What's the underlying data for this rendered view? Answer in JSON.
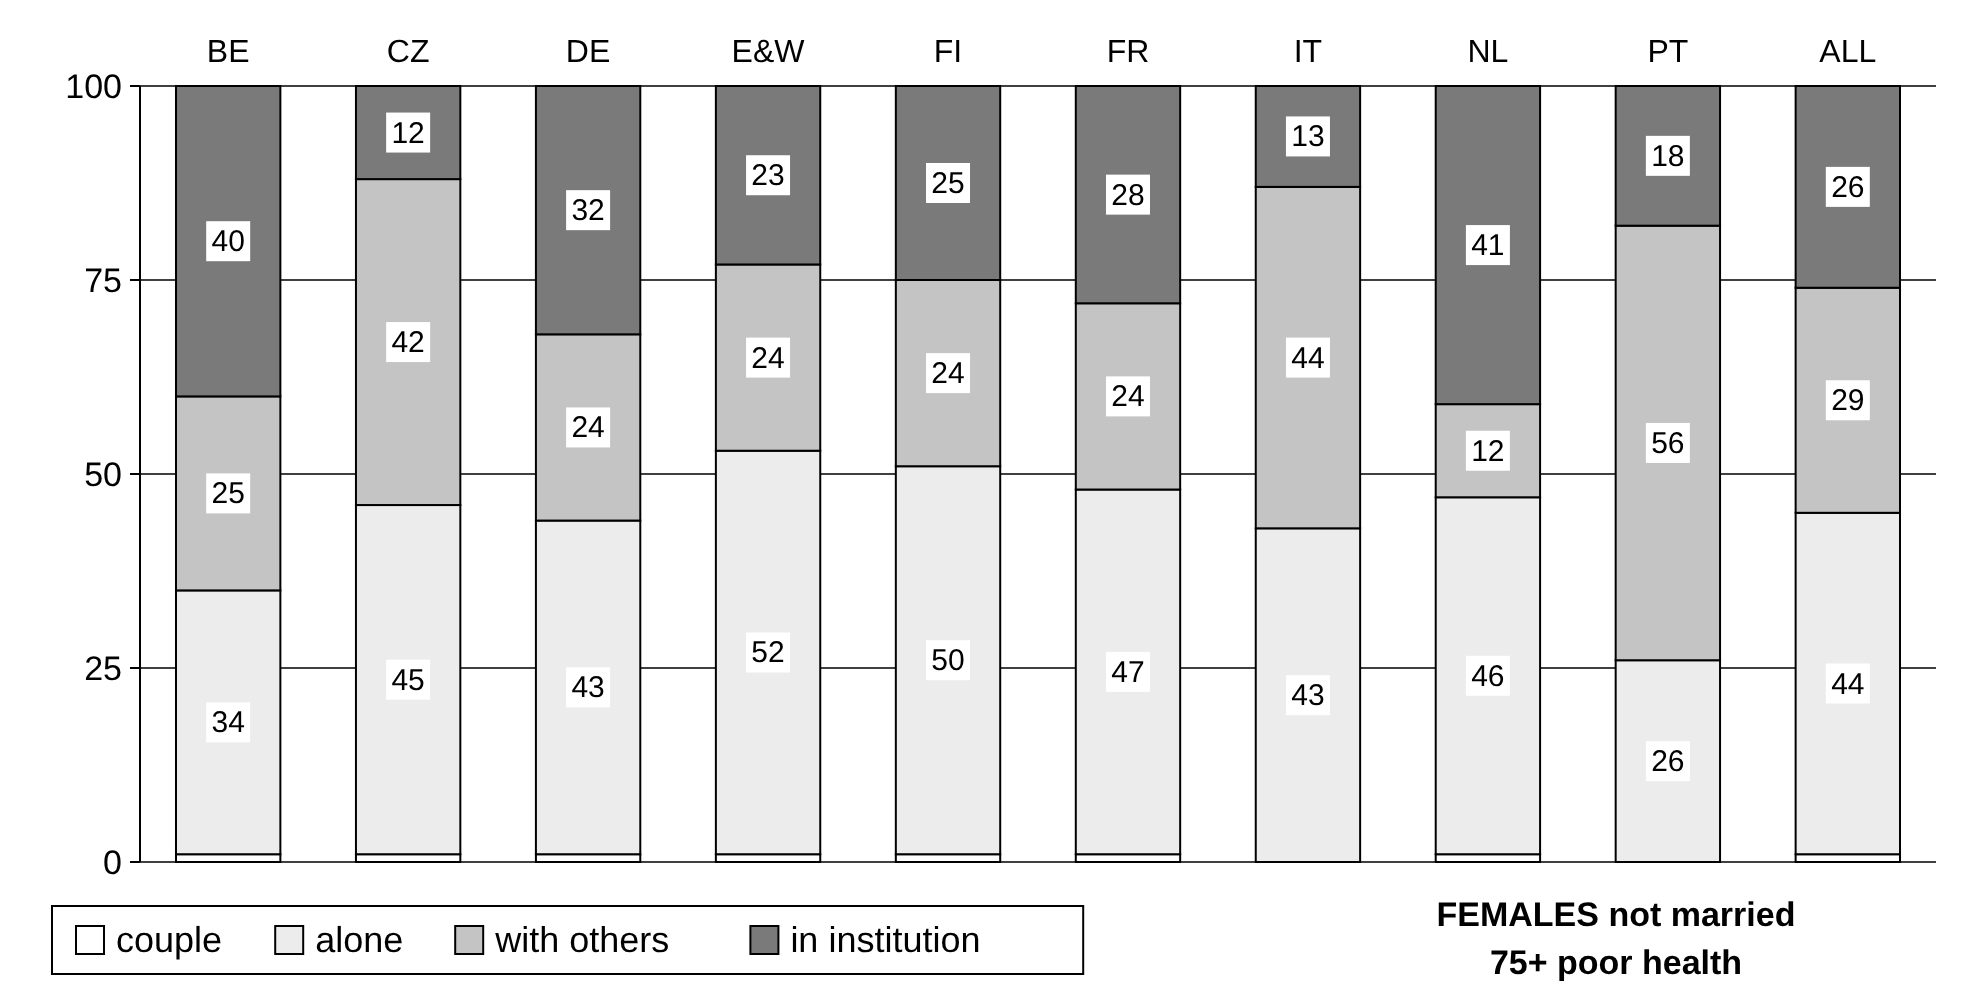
{
  "chart_data": {
    "type": "bar",
    "stacked": true,
    "categories": [
      "BE",
      "CZ",
      "DE",
      "E&W",
      "FI",
      "FR",
      "IT",
      "NL",
      "PT",
      "ALL"
    ],
    "series": [
      {
        "name": "couple",
        "color": "#ffffff",
        "values": [
          1,
          1,
          1,
          1,
          1,
          1,
          0,
          1,
          0,
          1
        ],
        "value_labels": [
          null,
          null,
          null,
          null,
          null,
          null,
          null,
          null,
          null,
          null
        ]
      },
      {
        "name": "alone",
        "color": "#ececec",
        "values": [
          34,
          45,
          43,
          52,
          50,
          47,
          43,
          46,
          26,
          44
        ],
        "value_labels": [
          "34",
          "45",
          "43",
          "52",
          "50",
          "47",
          "43",
          "46",
          "26",
          "44"
        ]
      },
      {
        "name": "with others",
        "color": "#c4c4c4",
        "values": [
          25,
          42,
          24,
          24,
          24,
          24,
          44,
          12,
          56,
          29
        ],
        "value_labels": [
          "25",
          "42",
          "24",
          "24",
          "24",
          "24",
          "44",
          "12",
          "56",
          "29"
        ]
      },
      {
        "name": "in institution",
        "color": "#7a7a7a",
        "values": [
          40,
          12,
          32,
          23,
          25,
          28,
          13,
          41,
          18,
          26
        ],
        "value_labels": [
          "40",
          "12",
          "32",
          "23",
          "25",
          "28",
          "13",
          "41",
          "18",
          "26"
        ]
      }
    ],
    "ylim": [
      0,
      100
    ],
    "yticks": [
      0,
      25,
      50,
      75,
      100
    ],
    "grid": "y",
    "legend": "bottom left",
    "annotations": [
      "FEMALES  not married",
      "75+ poor health"
    ]
  }
}
